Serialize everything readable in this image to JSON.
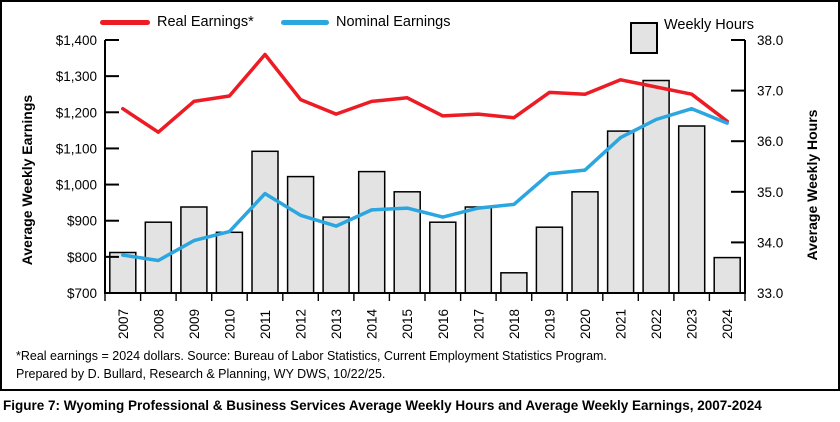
{
  "figure": {
    "caption": "Figure 7: Wyoming Professional & Business Services Average Weekly Hours and Average Weekly Earnings, 2007-2024",
    "footnote_line1": "*Real earnings = 2024 dollars. Source: Bureau of Labor Statistics, Current Employment Statistics Program.",
    "footnote_line2": "Prepared by D. Bullard, Research & Planning, WY DWS, 10/22/25."
  },
  "chart_data": {
    "type": "bar+line (dual axis)",
    "categories": [
      "2007",
      "2008",
      "2009",
      "2010",
      "2011",
      "2012",
      "2013",
      "2014",
      "2015",
      "2016",
      "2017",
      "2018",
      "2019",
      "2020",
      "2021",
      "2022",
      "2023",
      "2024"
    ],
    "series": [
      {
        "name": "Weekly Hours",
        "type": "bar",
        "axis": "right",
        "values": [
          33.8,
          34.4,
          34.7,
          34.2,
          35.8,
          35.3,
          34.5,
          35.4,
          35.0,
          34.4,
          34.7,
          33.4,
          34.3,
          35.0,
          36.2,
          37.2,
          36.3,
          33.7
        ]
      },
      {
        "name": "Real Earnings*",
        "type": "line",
        "axis": "left",
        "color": "#ED1C24",
        "values": [
          1210,
          1145,
          1230,
          1245,
          1360,
          1235,
          1195,
          1230,
          1240,
          1190,
          1195,
          1185,
          1255,
          1250,
          1290,
          1270,
          1250,
          1175
        ]
      },
      {
        "name": "Nominal Earnings",
        "type": "line",
        "axis": "left",
        "color": "#2BA6DF",
        "values": [
          805,
          790,
          845,
          870,
          975,
          915,
          885,
          930,
          935,
          910,
          935,
          945,
          1030,
          1040,
          1130,
          1180,
          1210,
          1170
        ]
      }
    ],
    "left_axis": {
      "label": "Average Weekly Earnings",
      "min": 700,
      "max": 1400,
      "tick_step": 100,
      "tick_values": [
        700,
        800,
        900,
        1000,
        1100,
        1200,
        1300,
        1400
      ],
      "tick_labels": [
        "$700",
        "$800",
        "$900",
        "$1,000",
        "$1,100",
        "$1,200",
        "$1,300",
        "$1,400"
      ]
    },
    "right_axis": {
      "label": "Average Weekly Hours",
      "min": 33.0,
      "max": 38.0,
      "tick_step": 1.0,
      "tick_values": [
        33,
        34,
        35,
        36,
        37,
        38
      ],
      "tick_labels": [
        "33.0",
        "34.0",
        "35.0",
        "36.0",
        "37.0",
        "38.0"
      ]
    },
    "bar_fill": "#E3E3E3",
    "bar_border": "#000000",
    "axis_color": "#000000",
    "grid": "off",
    "legend_position": "top"
  }
}
